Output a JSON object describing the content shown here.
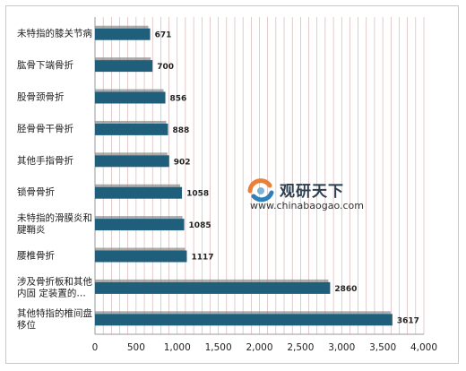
{
  "chart_data": {
    "type": "bar",
    "orientation": "horizontal",
    "categories": [
      [
        "未特指的膝关节病"
      ],
      [
        "肱骨下端骨折"
      ],
      [
        "股骨颈骨折"
      ],
      [
        "胫骨骨干骨折"
      ],
      [
        "其他手指骨折"
      ],
      [
        "锁骨骨折"
      ],
      [
        "未特指的滑膜炎和",
        "腱鞘炎"
      ],
      [
        "腰椎骨折"
      ],
      [
        "涉及骨折板和其他",
        "内固 定装置的…"
      ],
      [
        "其他特指的椎间盘",
        "移位"
      ]
    ],
    "values": [
      671,
      700,
      856,
      888,
      902,
      1058,
      1085,
      1117,
      2860,
      3617
    ],
    "value_labels": [
      "671",
      "700",
      "856",
      "888",
      "902",
      "1058",
      "1085",
      "1117",
      "2860",
      "3617"
    ],
    "xlim": [
      0,
      4000
    ],
    "xticks": [
      0,
      500,
      1000,
      1500,
      2000,
      2500,
      3000,
      3500,
      4000
    ],
    "xtick_labels": [
      "0",
      "500",
      "1,000",
      "1,500",
      "2,000",
      "2,500",
      "3,000",
      "3,500",
      "4,000"
    ],
    "grid": true,
    "colors": {
      "bar": "#1f5f7c",
      "bar_top": "#888888",
      "grid": "#d3a9a9",
      "axis": "#999999"
    }
  },
  "watermark": {
    "title": "观研天下",
    "url": "www.chinabaogao.com",
    "logo_colors": [
      "#e8803a",
      "#2f7fb8",
      "#7fb3d5"
    ]
  }
}
